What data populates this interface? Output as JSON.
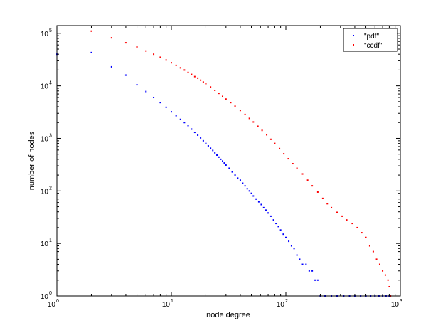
{
  "chart_data": {
    "type": "scatter",
    "title": "",
    "xlabel": "node degree",
    "ylabel": "number of nodes",
    "x_scale": "log",
    "y_scale": "log",
    "xlim": [
      1,
      1000
    ],
    "ylim": [
      1,
      140000
    ],
    "grid": false,
    "legend_position": "top-right",
    "x_ticks": [
      {
        "base": "10",
        "exp": "0"
      },
      {
        "base": "10",
        "exp": "1"
      },
      {
        "base": "10",
        "exp": "2"
      },
      {
        "base": "10",
        "exp": "3"
      }
    ],
    "y_ticks": [
      {
        "base": "10",
        "exp": "0"
      },
      {
        "base": "10",
        "exp": "1"
      },
      {
        "base": "10",
        "exp": "2"
      },
      {
        "base": "10",
        "exp": "3"
      },
      {
        "base": "10",
        "exp": "4"
      },
      {
        "base": "10",
        "exp": "5"
      }
    ],
    "series": [
      {
        "name": "\"pdf\"",
        "color": "#0000ff",
        "marker": "dot",
        "points": [
          [
            1,
            40000
          ],
          [
            2,
            43000
          ],
          [
            3,
            23000
          ],
          [
            4,
            16000
          ],
          [
            5,
            10500
          ],
          [
            6,
            7800
          ],
          [
            7,
            6000
          ],
          [
            8,
            4800
          ],
          [
            9,
            3900
          ],
          [
            10,
            3200
          ],
          [
            11,
            2700
          ],
          [
            12,
            2300
          ],
          [
            13,
            2000
          ],
          [
            14,
            1750
          ],
          [
            15,
            1500
          ],
          [
            16,
            1300
          ],
          [
            17,
            1150
          ],
          [
            18,
            1020
          ],
          [
            19,
            900
          ],
          [
            20,
            800
          ],
          [
            21,
            720
          ],
          [
            22,
            650
          ],
          [
            23,
            590
          ],
          [
            24,
            530
          ],
          [
            25,
            480
          ],
          [
            26,
            440
          ],
          [
            27,
            400
          ],
          [
            28,
            370
          ],
          [
            29,
            340
          ],
          [
            30,
            310
          ],
          [
            32,
            270
          ],
          [
            34,
            230
          ],
          [
            36,
            200
          ],
          [
            38,
            175
          ],
          [
            40,
            160
          ],
          [
            42,
            140
          ],
          [
            44,
            125
          ],
          [
            46,
            110
          ],
          [
            48,
            100
          ],
          [
            50,
            90
          ],
          [
            52,
            80
          ],
          [
            55,
            70
          ],
          [
            58,
            62
          ],
          [
            61,
            55
          ],
          [
            64,
            48
          ],
          [
            67,
            43
          ],
          [
            70,
            38
          ],
          [
            74,
            33
          ],
          [
            78,
            28
          ],
          [
            82,
            24
          ],
          [
            86,
            21
          ],
          [
            90,
            18
          ],
          [
            95,
            15
          ],
          [
            100,
            13
          ],
          [
            106,
            11
          ],
          [
            112,
            9
          ],
          [
            118,
            8
          ],
          [
            125,
            6
          ],
          [
            132,
            5
          ],
          [
            140,
            4
          ],
          [
            150,
            4
          ],
          [
            160,
            3
          ],
          [
            170,
            3
          ],
          [
            180,
            2
          ],
          [
            190,
            2
          ],
          [
            200,
            1
          ],
          [
            220,
            1
          ],
          [
            250,
            1
          ],
          [
            280,
            1
          ],
          [
            320,
            1
          ],
          [
            360,
            1
          ],
          [
            400,
            1
          ],
          [
            450,
            1
          ],
          [
            500,
            1
          ],
          [
            550,
            1
          ],
          [
            600,
            1
          ],
          [
            650,
            1
          ],
          [
            700,
            1
          ],
          [
            750,
            1
          ],
          [
            800,
            1
          ]
        ]
      },
      {
        "name": "\"ccdf\"",
        "color": "#ff0000",
        "marker": "dot",
        "points": [
          [
            2,
            110000
          ],
          [
            3,
            82000
          ],
          [
            4,
            66000
          ],
          [
            5,
            55000
          ],
          [
            6,
            46000
          ],
          [
            7,
            40000
          ],
          [
            8,
            35000
          ],
          [
            9,
            31000
          ],
          [
            10,
            27500
          ],
          [
            11,
            24500
          ],
          [
            12,
            22000
          ],
          [
            13,
            20000
          ],
          [
            14,
            18000
          ],
          [
            15,
            16500
          ],
          [
            16,
            15000
          ],
          [
            17,
            14000
          ],
          [
            18,
            12800
          ],
          [
            19,
            11800
          ],
          [
            20,
            11000
          ],
          [
            22,
            9500
          ],
          [
            24,
            8200
          ],
          [
            26,
            7200
          ],
          [
            28,
            6300
          ],
          [
            30,
            5600
          ],
          [
            33,
            4800
          ],
          [
            36,
            4100
          ],
          [
            40,
            3400
          ],
          [
            44,
            2850
          ],
          [
            48,
            2400
          ],
          [
            52,
            2050
          ],
          [
            57,
            1700
          ],
          [
            62,
            1420
          ],
          [
            68,
            1170
          ],
          [
            74,
            960
          ],
          [
            80,
            800
          ],
          [
            88,
            640
          ],
          [
            96,
            510
          ],
          [
            105,
            410
          ],
          [
            115,
            330
          ],
          [
            125,
            270
          ],
          [
            140,
            210
          ],
          [
            155,
            160
          ],
          [
            170,
            125
          ],
          [
            190,
            95
          ],
          [
            210,
            72
          ],
          [
            230,
            57
          ],
          [
            250,
            48
          ],
          [
            280,
            39
          ],
          [
            310,
            33
          ],
          [
            340,
            28
          ],
          [
            380,
            24
          ],
          [
            420,
            20
          ],
          [
            460,
            16
          ],
          [
            500,
            13
          ],
          [
            540,
            9
          ],
          [
            580,
            7
          ],
          [
            620,
            5
          ],
          [
            660,
            4
          ],
          [
            700,
            3
          ],
          [
            740,
            2.5
          ],
          [
            780,
            2
          ],
          [
            800,
            1.5
          ],
          [
            820,
            1
          ]
        ]
      }
    ]
  }
}
